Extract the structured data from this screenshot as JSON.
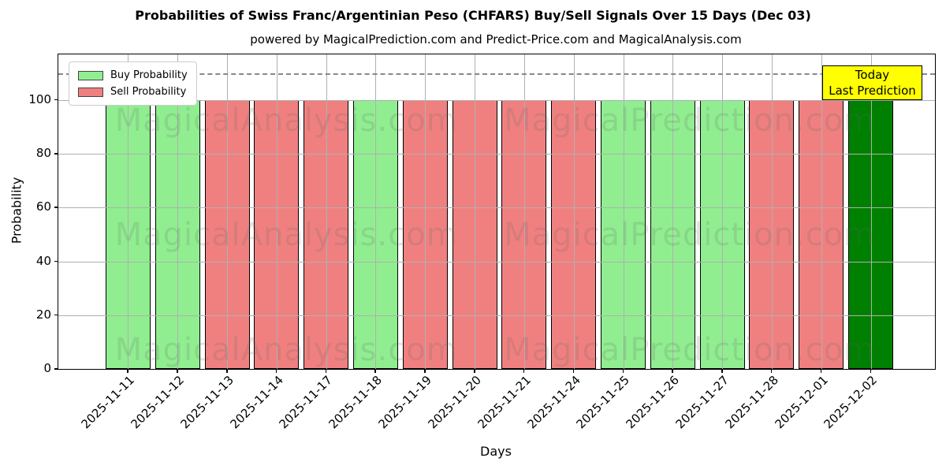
{
  "chart_data": {
    "type": "bar",
    "title": "Probabilities of Swiss Franc/Argentinian Peso (CHFARS) Buy/Sell Signals Over 15 Days (Dec 03)",
    "subtitle": "powered by MagicalPrediction.com and Predict-Price.com and MagicalAnalysis.com",
    "xlabel": "Days",
    "ylabel": "Probability",
    "ylim": [
      0,
      117
    ],
    "yticks": [
      0,
      20,
      40,
      60,
      80,
      100
    ],
    "grid": true,
    "threshold_line": {
      "value": 110,
      "style": "dashed",
      "color": "#888888"
    },
    "legend": {
      "position": "upper-left",
      "entries": [
        {
          "label": "Buy Probability",
          "color": "#90EE90"
        },
        {
          "label": "Sell Probability",
          "color": "#F08080"
        }
      ]
    },
    "categories": [
      "2025-11-11",
      "2025-11-12",
      "2025-11-13",
      "2025-11-14",
      "2025-11-17",
      "2025-11-18",
      "2025-11-19",
      "2025-11-20",
      "2025-11-21",
      "2025-11-24",
      "2025-11-25",
      "2025-11-26",
      "2025-11-27",
      "2025-11-28",
      "2025-12-01",
      "2025-12-02"
    ],
    "bar_values": [
      100,
      100,
      100,
      100,
      100,
      100,
      100,
      100,
      100,
      100,
      100,
      100,
      100,
      100,
      100,
      100
    ],
    "bar_signals": [
      "buy",
      "buy",
      "sell",
      "sell",
      "sell",
      "buy",
      "sell",
      "sell",
      "sell",
      "sell",
      "buy",
      "buy",
      "buy",
      "sell",
      "sell",
      "today"
    ],
    "signal_colors": {
      "buy": "#90EE90",
      "sell": "#F08080",
      "today": "#008000"
    },
    "series": [
      {
        "name": "Buy Probability",
        "color": "#90EE90",
        "values": [
          100,
          100,
          0,
          0,
          0,
          100,
          0,
          0,
          0,
          0,
          100,
          100,
          100,
          0,
          0,
          0
        ]
      },
      {
        "name": "Sell Probability",
        "color": "#F08080",
        "values": [
          0,
          0,
          100,
          100,
          100,
          0,
          100,
          100,
          100,
          100,
          0,
          0,
          0,
          100,
          100,
          0
        ]
      },
      {
        "name": "Today Last Prediction",
        "color": "#008000",
        "values": [
          0,
          0,
          0,
          0,
          0,
          0,
          0,
          0,
          0,
          0,
          0,
          0,
          0,
          0,
          0,
          100
        ]
      }
    ],
    "annotation": {
      "lines": [
        "Today",
        "Last Prediction"
      ],
      "bg_color": "#FFFF00",
      "border_color": "#000000",
      "target": "2025-12-02"
    },
    "watermarks": [
      "MagicalAnalysis.com",
      "MagicalPrediction.com"
    ]
  }
}
